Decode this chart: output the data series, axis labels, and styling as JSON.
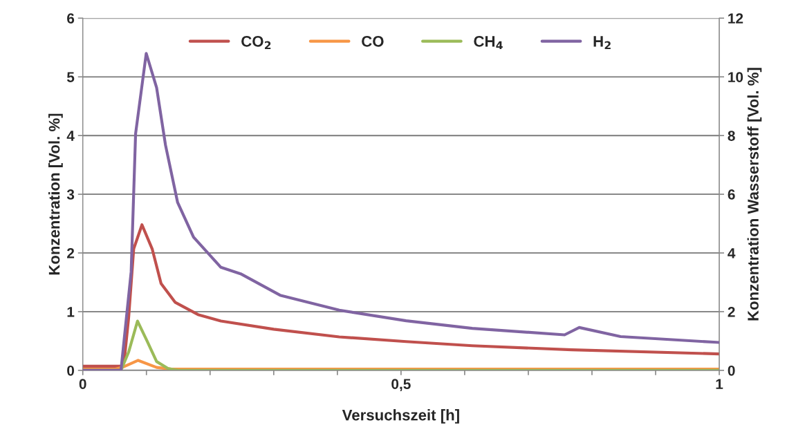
{
  "chart_data": {
    "type": "line",
    "xlabel": "Versuchszeit [h]",
    "ylabel": "Konzentration [Vol. %]",
    "y2label": "Konzentration Wasserstoff [Vol. %]",
    "xlim": [
      0,
      1
    ],
    "xticks": [
      0,
      {
        "value": 0.1,
        "label": null
      },
      {
        "value": 0.2,
        "label": null
      },
      {
        "value": 0.3,
        "label": null
      },
      {
        "value": 0.4,
        "label": null
      },
      {
        "value": 0.5,
        "label": "0,5"
      },
      {
        "value": 0.6,
        "label": null
      },
      {
        "value": 0.7,
        "label": null
      },
      {
        "value": 0.8,
        "label": null
      },
      {
        "value": 0.9,
        "label": null
      },
      1
    ],
    "ylim": [
      0,
      6
    ],
    "yticks": [
      0,
      1,
      2,
      3,
      4,
      5,
      6
    ],
    "y2lim": [
      0,
      12
    ],
    "y2ticks": [
      0,
      2,
      4,
      6,
      8,
      10,
      12
    ],
    "grid": "y",
    "legend": "top",
    "line_style": "solid",
    "marker": "none",
    "series": [
      {
        "name": "CO$_{2}$",
        "color": "#c0504d",
        "x": [
          0,
          0.03,
          0.06,
          0.065,
          0.072,
          0.08,
          0.093,
          0.109,
          0.123,
          0.145,
          0.181,
          0.217,
          0.3,
          0.403,
          0.508,
          0.612,
          0.768,
          1.0
        ],
        "values": [
          0.07,
          0.07,
          0.07,
          0.15,
          0.89,
          2.07,
          2.48,
          2.07,
          1.48,
          1.16,
          0.95,
          0.84,
          0.7,
          0.57,
          0.49,
          0.42,
          0.35,
          0.28
        ]
      },
      {
        "name": "CO",
        "color": "#f79646",
        "x": [
          0,
          0.05,
          0.062,
          0.087,
          0.116,
          0.14,
          0.5,
          1.0
        ],
        "values": [
          0.02,
          0.02,
          0.05,
          0.17,
          0.05,
          0.02,
          0.02,
          0.02
        ]
      },
      {
        "name": "CH$_{4}$",
        "color": "#9bbb59",
        "x": [
          0,
          0.06,
          0.072,
          0.086,
          0.101,
          0.116,
          0.134,
          0.15,
          1.0
        ],
        "values": [
          0,
          0,
          0.31,
          0.84,
          0.5,
          0.15,
          0.03,
          0,
          0
        ]
      },
      {
        "name": "H$_{2}$",
        "color": "#8064a2",
        "axis": "y2",
        "x": [
          0,
          0.06,
          0.076,
          0.083,
          0.0997,
          0.116,
          0.13,
          0.149,
          0.174,
          0.217,
          0.248,
          0.31,
          0.403,
          0.508,
          0.612,
          0.757,
          0.78,
          0.845,
          1.0
        ],
        "values": [
          0,
          0,
          3.36,
          8.07,
          10.8,
          9.63,
          7.67,
          5.72,
          4.54,
          3.51,
          3.29,
          2.56,
          2.05,
          1.69,
          1.43,
          1.21,
          1.46,
          1.15,
          0.95
        ]
      }
    ]
  }
}
